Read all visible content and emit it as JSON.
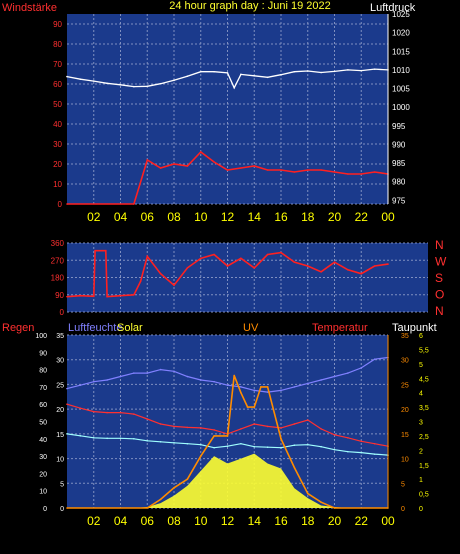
{
  "header": {
    "left_label": "Windstärke",
    "center_label": "24 hour graph day : Juni 19 2022",
    "right_label": "Luftdruck"
  },
  "wind_dir_labels": [
    "N",
    "W",
    "S",
    "O",
    "N"
  ],
  "bottom_header": {
    "regen": "Regen",
    "luftfeuchte": "Luftfeuchte",
    "solar": "Solar",
    "uv": "UV",
    "temperatur": "Temperatur",
    "taupunkt": "Taupunkt"
  },
  "colors": {
    "panel": "#1b3a8c",
    "grid": "#7f8fc0",
    "red": "#ff2020",
    "cyan": "#a0ffff",
    "white": "#ffffff",
    "yellow": "#ffff30",
    "orange": "#ff8c00",
    "blue": "#8080ff",
    "axis_red": "#ff3030",
    "axis_yellow": "#ffff00"
  },
  "chart_data": [
    {
      "type": "line",
      "title": "24 hour graph day : Juni 19 2022",
      "x_ticks": [
        "02",
        "04",
        "06",
        "08",
        "10",
        "12",
        "14",
        "16",
        "18",
        "20",
        "22",
        "00"
      ],
      "left_axis": {
        "label": "Windstärke",
        "ticks": [
          "90",
          "80",
          "70",
          "60",
          "50",
          "40",
          "30",
          "20",
          "10",
          "0"
        ],
        "range": [
          0,
          95
        ]
      },
      "right_axis": {
        "label": "Luftdruck",
        "ticks": [
          "1025",
          "1020",
          "1015",
          "1010",
          "1005",
          "1000",
          "995",
          "990",
          "985",
          "980",
          "975"
        ],
        "range": [
          974,
          1025
        ]
      },
      "series": [
        {
          "name": "Luftdruck",
          "color": "#ffffff",
          "hours": [
            0,
            1,
            2,
            3,
            4,
            5,
            6,
            7,
            8,
            9,
            10,
            11,
            12,
            12.5,
            13,
            14,
            15,
            16,
            17,
            18,
            19,
            20,
            21,
            22,
            23,
            24
          ],
          "values": [
            1008.2,
            1007.5,
            1007,
            1006.4,
            1006,
            1005.5,
            1005.6,
            1006.3,
            1007.2,
            1008.3,
            1009.5,
            1009.5,
            1009.2,
            1005.2,
            1008.8,
            1008.4,
            1008,
            1008.7,
            1009.5,
            1009.7,
            1009.3,
            1009.6,
            1010,
            1009.8,
            1010.2,
            1010
          ]
        },
        {
          "name": "Windstärke",
          "color": "#ff2020",
          "hours": [
            0,
            5,
            6,
            7,
            8,
            9,
            10,
            11,
            12,
            13,
            14,
            15,
            16,
            17,
            18,
            19,
            20,
            21,
            22,
            23,
            24
          ],
          "values": [
            0,
            0,
            22,
            18,
            20,
            19,
            26,
            21,
            17,
            18,
            19,
            17,
            17,
            16,
            17,
            17,
            16,
            15,
            15,
            16,
            15
          ]
        }
      ]
    },
    {
      "type": "line",
      "x_ticks": [
        "02",
        "04",
        "06",
        "08",
        "10",
        "12",
        "14",
        "16",
        "18",
        "20",
        "22",
        "00"
      ],
      "left_axis": {
        "ticks": [
          "360",
          "270",
          "180",
          "90",
          "0"
        ],
        "range": [
          0,
          360
        ]
      },
      "right_labels": [
        "N",
        "W",
        "S",
        "O",
        "N"
      ],
      "series": [
        {
          "name": "Windrichtung",
          "color": "#ff2020",
          "hours": [
            0,
            1,
            2,
            2.1,
            2.9,
            3,
            4,
            5,
            5.5,
            6,
            7,
            8,
            9,
            10,
            11,
            12,
            13,
            14,
            15,
            16,
            17,
            18,
            19,
            20,
            21,
            22,
            23,
            24
          ],
          "values": [
            80,
            85,
            82,
            320,
            320,
            80,
            85,
            90,
            160,
            290,
            200,
            140,
            230,
            280,
            300,
            240,
            280,
            230,
            300,
            310,
            260,
            240,
            210,
            260,
            220,
            200,
            240,
            250
          ]
        }
      ]
    },
    {
      "type": "line",
      "x_ticks": [
        "02",
        "04",
        "06",
        "08",
        "10",
        "12",
        "14",
        "16",
        "18",
        "20",
        "22",
        "00"
      ],
      "axes": {
        "luftfeuchte": {
          "ticks": [
            "100",
            "90",
            "80",
            "70",
            "60",
            "50",
            "40",
            "30",
            "20",
            "10",
            "0"
          ],
          "range": [
            0,
            100
          ]
        },
        "regen": {
          "ticks": [
            "35",
            "30",
            "25",
            "20",
            "15",
            "10",
            "5",
            "0"
          ],
          "range": [
            0,
            35
          ]
        },
        "temperatur": {
          "ticks": [
            "35",
            "30",
            "25",
            "20",
            "15",
            "10",
            "5",
            "0"
          ],
          "range": [
            0,
            35
          ]
        },
        "uv": {
          "ticks": [
            "6",
            "5,5",
            "5",
            "4,5",
            "4",
            "3,5",
            "3",
            "2,5",
            "2",
            "1,5",
            "1",
            "0,5",
            "0"
          ],
          "range": [
            0,
            6
          ]
        }
      },
      "series": [
        {
          "name": "Luftfeuchte",
          "color": "#8080ff",
          "hours": [
            0,
            1,
            2,
            3,
            4,
            5,
            6,
            7,
            8,
            9,
            10,
            11,
            12,
            13,
            14,
            15,
            16,
            17,
            18,
            19,
            20,
            21,
            22,
            23,
            24
          ],
          "values": [
            69,
            71,
            73,
            74,
            76,
            78,
            78,
            80,
            79,
            76,
            74,
            73,
            71,
            70,
            68,
            67,
            68,
            70,
            72,
            74,
            76,
            78,
            81,
            86,
            87
          ]
        },
        {
          "name": "Temperatur",
          "color": "#ff3030",
          "hours": [
            0,
            1,
            2,
            3,
            4,
            5,
            6,
            7,
            8,
            9,
            10,
            11,
            12,
            13,
            14,
            15,
            16,
            17,
            18,
            19,
            20,
            21,
            22,
            23,
            24
          ],
          "values": [
            21,
            20.2,
            19.5,
            19.3,
            19.3,
            19,
            18,
            17,
            16.5,
            16.3,
            16.2,
            15.8,
            15,
            16,
            17,
            16.5,
            16.2,
            17,
            17.8,
            16,
            14.8,
            14.2,
            13.5,
            13,
            12.5
          ]
        },
        {
          "name": "Taupunkt",
          "color": "#a0ffff",
          "hours": [
            0,
            1,
            2,
            3,
            4,
            5,
            6,
            7,
            8,
            9,
            10,
            11,
            12,
            13,
            14,
            15,
            16,
            17,
            18,
            19,
            20,
            21,
            22,
            23,
            24
          ],
          "values": [
            15,
            14.6,
            14.2,
            14.1,
            14.1,
            14,
            13.6,
            13.4,
            13.2,
            13,
            12.8,
            12.2,
            12.5,
            13,
            12.4,
            12.3,
            12.2,
            12.7,
            12.8,
            12.4,
            11.8,
            11.4,
            11.2,
            10.9,
            10.7
          ]
        },
        {
          "name": "Solar",
          "color": "#ffff30",
          "hours": [
            0,
            5,
            6,
            7,
            8,
            9,
            10,
            11,
            12,
            13,
            14,
            15,
            16,
            17,
            18,
            19,
            20,
            21,
            24
          ],
          "values": [
            0,
            0,
            0.2,
            1,
            2.5,
            4.5,
            7.5,
            10.5,
            9,
            10,
            11,
            9,
            8,
            4,
            2,
            0.5,
            0.2,
            0,
            0
          ]
        },
        {
          "name": "UV",
          "color": "#ff8c00",
          "hours": [
            0,
            6,
            7,
            8,
            9,
            10,
            11,
            12,
            12.5,
            13,
            13.5,
            14,
            14.5,
            15,
            16,
            17,
            18,
            19,
            20,
            24
          ],
          "values": [
            0,
            0,
            0.3,
            0.7,
            1,
            1.8,
            2.5,
            2.5,
            4.6,
            4,
            3.5,
            3.5,
            4.2,
            4.2,
            2.4,
            1.4,
            0.5,
            0.2,
            0,
            0
          ]
        }
      ]
    }
  ]
}
